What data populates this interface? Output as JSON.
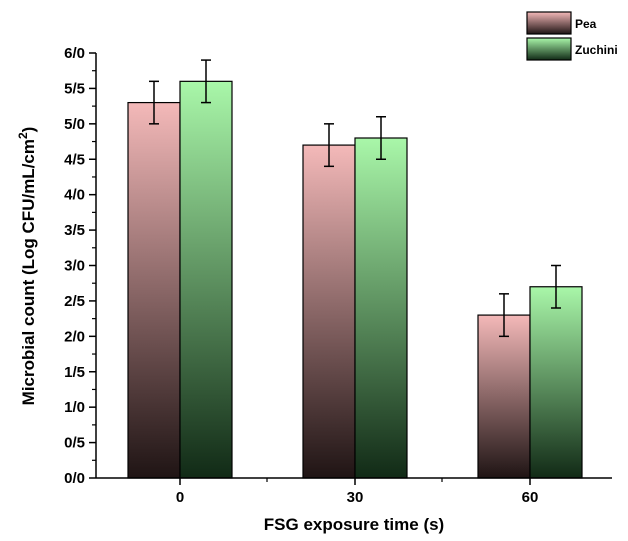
{
  "chart_data": {
    "type": "bar",
    "categories": [
      "0",
      "30",
      "60"
    ],
    "series": [
      {
        "name": "Pea",
        "values": [
          5.3,
          4.7,
          2.3
        ],
        "errors": [
          0.3,
          0.3,
          0.3
        ],
        "color_top": "#f4b9b9",
        "color_bottom": "#1f1414"
      },
      {
        "name": "Zuchini",
        "values": [
          5.6,
          4.8,
          2.7
        ],
        "errors": [
          0.3,
          0.3,
          0.3
        ],
        "color_top": "#a9f7a9",
        "color_bottom": "#112a16"
      }
    ],
    "xlabel": "FSG exposure time (s)",
    "ylabel": "Microbial count (Log CFU/mL/cm",
    "ylabel_superscript": "2",
    "ylabel_close": ")",
    "ylim": [
      0,
      6
    ],
    "yticks": [
      "0/0",
      "0/5",
      "1/0",
      "1/5",
      "2/0",
      "2/5",
      "3/0",
      "3/5",
      "4/0",
      "4/5",
      "5/0",
      "5/5",
      "6/0"
    ],
    "grid": false,
    "legend_position": "top-right"
  }
}
